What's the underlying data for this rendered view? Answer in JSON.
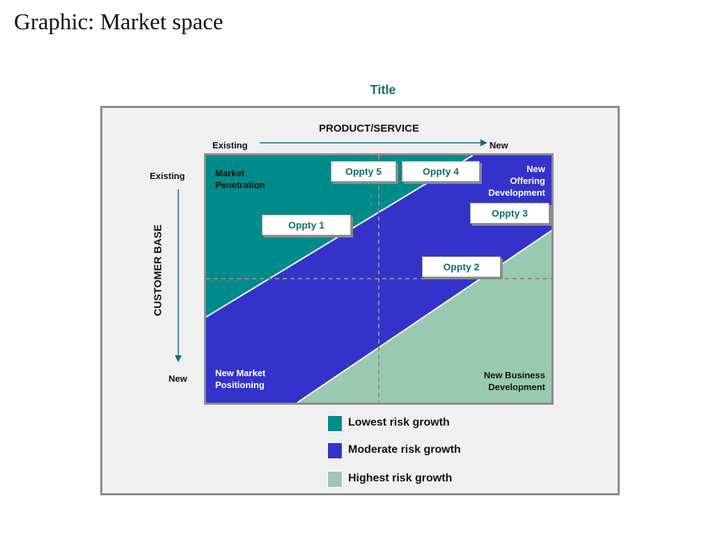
{
  "slide": {
    "title": "Graphic: Market space"
  },
  "diagram": {
    "title": "Title",
    "horizontal_axis": {
      "title": "PRODUCT/SERVICE",
      "start": "Existing",
      "end": "New"
    },
    "vertical_axis": {
      "title": "CUSTOMER BASE",
      "start": "Existing",
      "end": "New"
    },
    "quadrants": {
      "top_left": "Market\nPenetration",
      "top_right": "New\nOffering\nDevelopment",
      "bottom_left": "New Market\nPositioning",
      "bottom_right": "New Business\nDevelopment"
    },
    "opportunities": [
      {
        "id": "oppty-1",
        "label": "Oppty 1"
      },
      {
        "id": "oppty-2",
        "label": "Oppty 2"
      },
      {
        "id": "oppty-3",
        "label": "Oppty 3"
      },
      {
        "id": "oppty-4",
        "label": "Oppty 4"
      },
      {
        "id": "oppty-5",
        "label": "Oppty 5"
      }
    ],
    "legend": [
      {
        "label": "Lowest risk growth",
        "color": "#008b8b"
      },
      {
        "label": "Moderate risk growth",
        "color": "#3333cc"
      },
      {
        "label": "Highest risk growth",
        "color": "#99c9b0"
      }
    ]
  },
  "colors": {
    "lowest": "#008b8b",
    "moderate": "#3333cc",
    "highest": "#99c9b0",
    "accent": "#0e6f6a",
    "frame": "#8c8c8c"
  }
}
